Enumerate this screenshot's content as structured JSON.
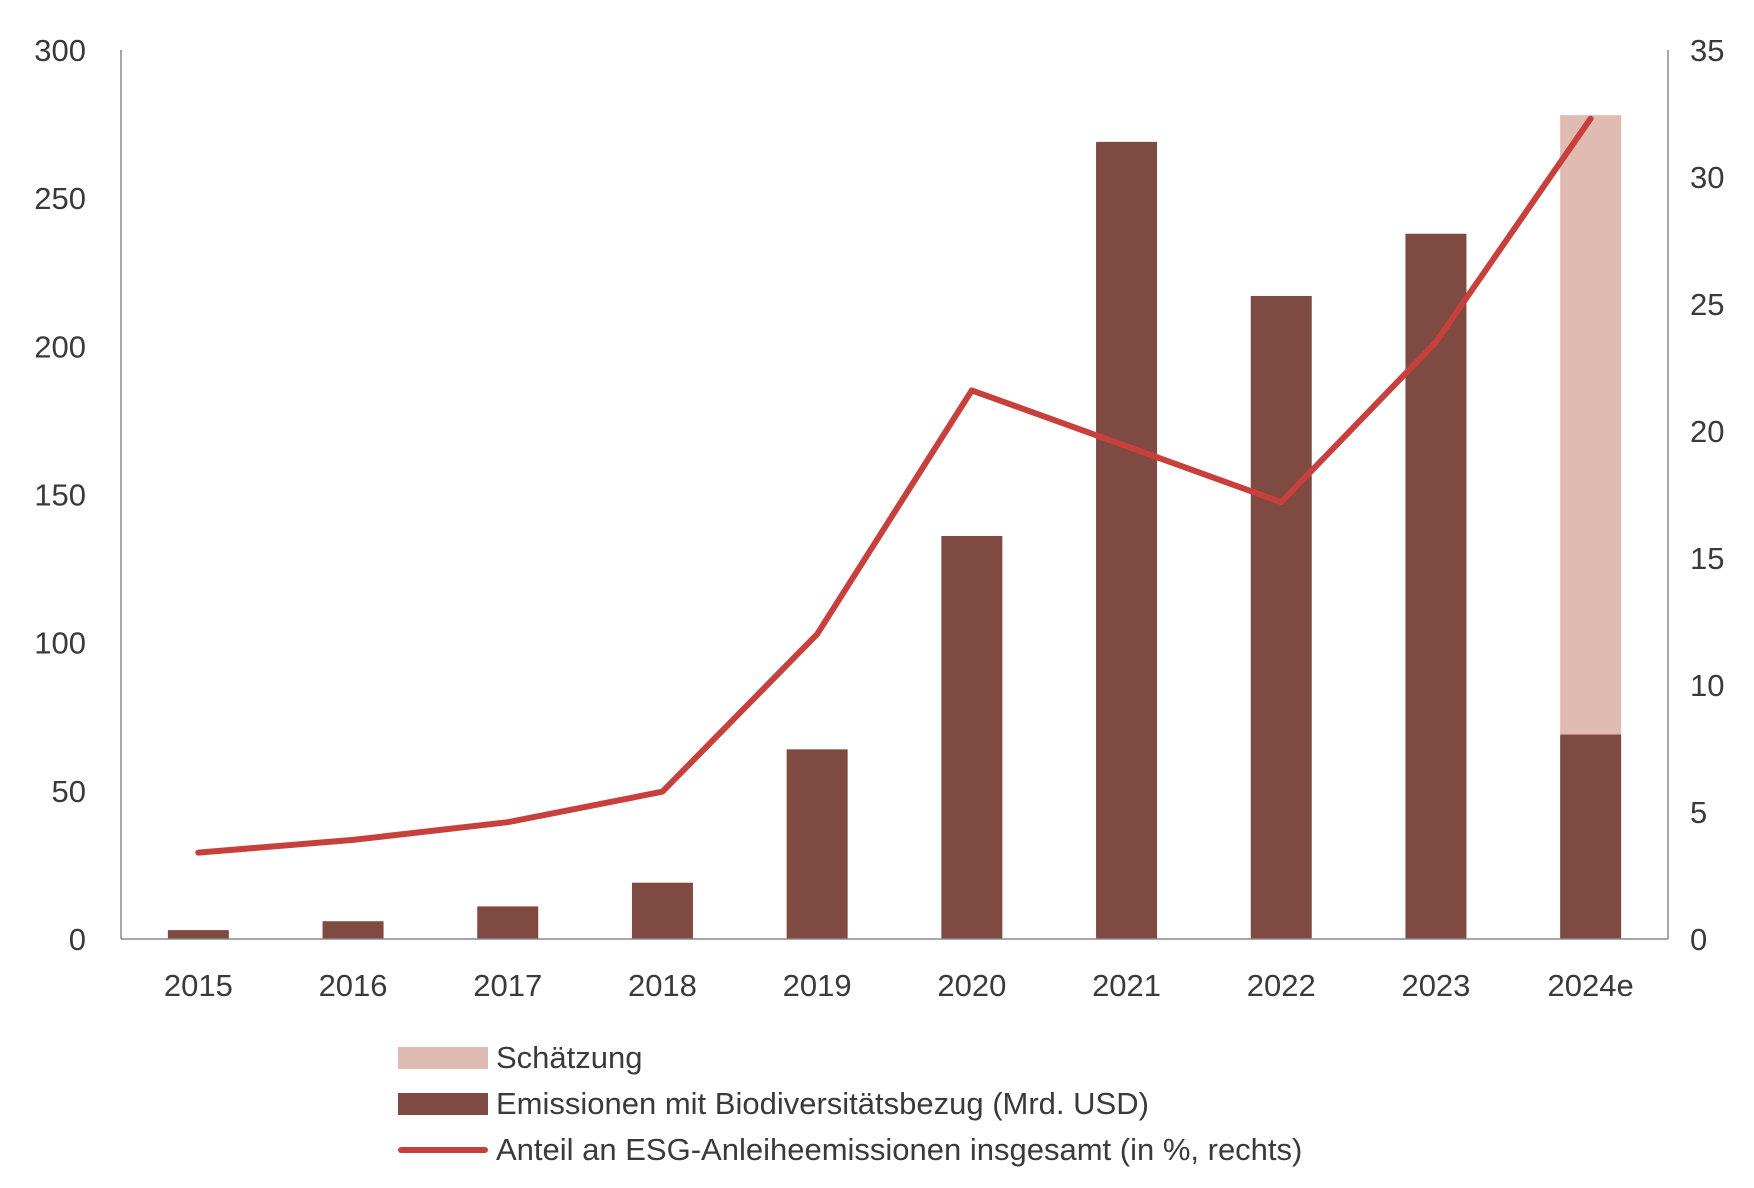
{
  "colors": {
    "bar": "#7f4a42",
    "estimate": "#e0bbb1",
    "line": "#c8403c",
    "axis": "#8a8a8a",
    "text": "#3a3a3a"
  },
  "chart_data": {
    "type": "bar+line",
    "categories": [
      "2015",
      "2016",
      "2017",
      "2018",
      "2019",
      "2020",
      "2021",
      "2022",
      "2023",
      "2024e"
    ],
    "series": [
      {
        "name": "Emissionen mit Biodiversitätsbezug (Mrd. USD)",
        "type": "bar",
        "axis": "left",
        "values": [
          3,
          6,
          11,
          19,
          64,
          136,
          269,
          217,
          238,
          69
        ]
      },
      {
        "name": "Schätzung",
        "type": "bar",
        "axis": "left",
        "stacked_on": "Emissionen mit Biodiversitätsbezug (Mrd. USD)",
        "values": [
          0,
          0,
          0,
          0,
          0,
          0,
          0,
          0,
          0,
          209
        ]
      },
      {
        "name": "Anteil an ESG-Anleiheemissionen insgesamt (in %, rechts)",
        "type": "line",
        "axis": "right",
        "values": [
          3.4,
          3.9,
          4.6,
          5.8,
          12.0,
          21.6,
          19.4,
          17.2,
          23.5,
          32.3
        ]
      }
    ],
    "y_left": {
      "min": 0,
      "max": 300,
      "ticks": [
        "0",
        "50",
        "100",
        "150",
        "200",
        "250",
        "300"
      ]
    },
    "y_right": {
      "min": 0,
      "max": 35,
      "ticks": [
        "0",
        "5",
        "10",
        "15",
        "20",
        "25",
        "30",
        "35"
      ]
    },
    "legend": {
      "estimate": "Schätzung",
      "bars": "Emissionen mit Biodiversitätsbezug (Mrd. USD)",
      "line": "Anteil an ESG-Anleiheemissionen insgesamt (in %, rechts)"
    }
  }
}
